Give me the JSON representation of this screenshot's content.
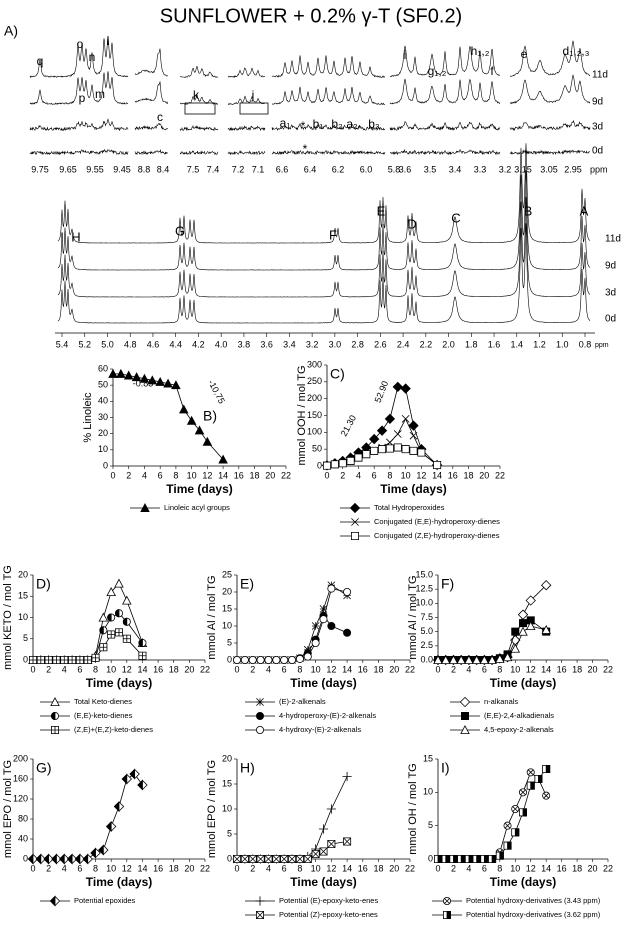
{
  "title": "SUNFLOWER + 0.2% γ-T (SF0.2)",
  "spectra": {
    "panel_label": "A)",
    "top_ticks": [
      "9.75",
      "9.65",
      "9.55",
      "9.45",
      "8.8",
      "8.4",
      "7.5",
      "7.4",
      "7.2",
      "7.1",
      "6.6",
      "6.4",
      "6.2",
      "6.0",
      "5.8",
      "3.6",
      "3.5",
      "3.4",
      "3.3",
      "3.2",
      "3.15",
      "3.05",
      "2.95"
    ],
    "unit": "ppm",
    "peak_labels": [
      "q",
      "o",
      "n",
      "l",
      "m",
      "p",
      "c",
      "k",
      "j",
      "a₁",
      "*",
      "b₁",
      "b₂",
      "a₂",
      "b₃",
      "*",
      "i",
      "g₁,₂",
      "h₁,₂",
      "f",
      "e",
      "d₁,₂,₃"
    ],
    "days": [
      "11d",
      "9d",
      "3d",
      "0d"
    ],
    "bottom_peaks": [
      "I",
      "H",
      "G",
      "F",
      "E",
      "D",
      "C",
      "B",
      "A"
    ],
    "bottom_ticks": [
      "5.4",
      "5.2",
      "5.0",
      "4.8",
      "4.6",
      "4.4",
      "4.2",
      "4.0",
      "3.8",
      "3.6",
      "3.4",
      "3.2",
      "3.0",
      "2.8",
      "2.6",
      "2.4",
      "2.2",
      "2.0",
      "1.8",
      "1.6",
      "1.4",
      "1.2",
      "1.0",
      "0.8"
    ]
  },
  "chart_data": [
    {
      "type": "line",
      "panel_label": "B)",
      "ylabel": "% Linoleic",
      "xlabel": "Time (days)",
      "x": [
        0,
        1,
        2,
        3,
        4,
        5,
        6,
        7,
        8,
        9,
        10,
        11,
        12,
        14
      ],
      "xlim": [
        0,
        22
      ],
      "xticks": [
        0,
        2,
        4,
        6,
        8,
        10,
        12,
        14,
        16,
        18,
        20,
        22
      ],
      "ylim": [
        0,
        60
      ],
      "yticks": [
        0,
        10,
        20,
        30,
        40,
        50,
        60
      ],
      "annotations": [
        "-0.85",
        "-10.75"
      ],
      "series": [
        {
          "name": "Linoleic acyl groups",
          "color": "#000000",
          "marker": "triangle",
          "marker_fill": "#000000",
          "values": [
            57,
            57,
            56,
            55,
            54,
            53,
            52,
            51,
            50,
            35,
            28,
            22,
            15,
            4
          ]
        }
      ]
    },
    {
      "type": "line",
      "panel_label": "C)",
      "ylabel": "mmol OOH / mol TG",
      "xlabel": "Time (days)",
      "x": [
        0,
        1,
        2,
        3,
        4,
        5,
        6,
        7,
        8,
        9,
        10,
        11,
        12,
        14
      ],
      "xlim": [
        0,
        22
      ],
      "xticks": [
        0,
        2,
        4,
        6,
        8,
        10,
        12,
        14,
        16,
        18,
        20,
        22
      ],
      "ylim": [
        0,
        300
      ],
      "yticks": [
        0,
        50,
        100,
        150,
        200,
        250,
        300
      ],
      "annotations": [
        "21.30",
        "52.90"
      ],
      "series": [
        {
          "name": "Total Hydroperoxides",
          "color": "#000000",
          "marker": "diamond",
          "marker_fill": "#000000",
          "values": [
            2,
            8,
            15,
            25,
            40,
            55,
            80,
            105,
            140,
            235,
            230,
            120,
            50,
            3
          ]
        },
        {
          "name": "Conjugated (E,E)-hydroperoxy-dienes",
          "color": "#000000",
          "marker": "x",
          "marker_fill": "#ffffff",
          "values": [
            1,
            5,
            10,
            18,
            28,
            35,
            45,
            55,
            70,
            95,
            140,
            90,
            40,
            3
          ]
        },
        {
          "name": "Conjugated (Z,E)-hydroperoxy-dienes",
          "color": "#000000",
          "marker": "square",
          "marker_fill": "#ffffff",
          "values": [
            1,
            5,
            8,
            15,
            25,
            35,
            45,
            50,
            52,
            55,
            50,
            45,
            40,
            3
          ]
        }
      ]
    },
    {
      "type": "line",
      "panel_label": "D)",
      "ylabel": "mmol KETO / mol TG",
      "xlabel": "Time (days)",
      "x": [
        0,
        1,
        2,
        3,
        4,
        5,
        6,
        7,
        8,
        9,
        10,
        11,
        12,
        14
      ],
      "xlim": [
        0,
        22
      ],
      "xticks": [
        0,
        2,
        4,
        6,
        8,
        10,
        12,
        14,
        16,
        18,
        20,
        22
      ],
      "ylim": [
        0,
        20
      ],
      "yticks": [
        0,
        5,
        10,
        15,
        20
      ],
      "series": [
        {
          "name": "Total Keto-dienes",
          "color": "#000000",
          "marker": "triangle",
          "marker_fill": "#ffffff",
          "values": [
            0,
            0,
            0,
            0,
            0,
            0,
            0,
            0,
            1,
            10,
            16,
            18,
            14,
            4
          ]
        },
        {
          "name": "(E,E)-keto-dienes",
          "color": "#000000",
          "marker": "half-circle",
          "marker_fill": "#000000",
          "values": [
            0,
            0,
            0,
            0,
            0,
            0,
            0,
            0,
            0.5,
            7,
            10,
            11,
            9,
            4
          ]
        },
        {
          "name": "(Z,E)+(E,Z)-keto-dienes",
          "color": "#000000",
          "marker": "square-plus",
          "marker_fill": "#ffffff",
          "values": [
            0,
            0,
            0,
            0,
            0,
            0,
            0,
            0,
            0.5,
            3,
            6,
            6.5,
            5,
            1
          ]
        }
      ]
    },
    {
      "type": "line",
      "panel_label": "E)",
      "ylabel": "mmol Al / mol TG",
      "xlabel": "Time (days)",
      "x": [
        0,
        1,
        2,
        3,
        4,
        5,
        6,
        7,
        8,
        9,
        10,
        11,
        12,
        14
      ],
      "xlim": [
        0,
        22
      ],
      "xticks": [
        0,
        2,
        4,
        6,
        8,
        10,
        12,
        14,
        16,
        18,
        20,
        22
      ],
      "ylim": [
        0,
        25
      ],
      "yticks": [
        0,
        5,
        10,
        15,
        20,
        25
      ],
      "series": [
        {
          "name": "(E)-2-alkenals",
          "color": "#000000",
          "marker": "asterisk",
          "marker_fill": "#ffffff",
          "values": [
            0,
            0,
            0,
            0,
            0,
            0,
            0,
            0,
            0.5,
            3,
            10,
            15,
            22,
            19
          ]
        },
        {
          "name": "4-hydroperoxy-(E)-2-alkenals",
          "color": "#000000",
          "marker": "circle",
          "marker_fill": "#000000",
          "values": [
            0,
            0,
            0,
            0,
            0,
            0,
            0,
            0,
            0.5,
            2,
            6,
            13,
            10,
            8
          ]
        },
        {
          "name": "4-hydroxy-(E)-2-alkenals",
          "color": "#000000",
          "marker": "circle",
          "marker_fill": "#ffffff",
          "values": [
            0,
            0,
            0,
            0,
            0,
            0,
            0,
            0,
            0.3,
            1,
            5,
            12,
            21,
            20
          ]
        }
      ]
    },
    {
      "type": "line",
      "panel_label": "F)",
      "ylabel": "mmol Al / mol TG",
      "xlabel": "Time (days)",
      "x": [
        0,
        1,
        2,
        3,
        4,
        5,
        6,
        7,
        8,
        9,
        10,
        11,
        12,
        14
      ],
      "xlim": [
        0,
        22
      ],
      "xticks": [
        0,
        2,
        4,
        6,
        8,
        10,
        12,
        14,
        16,
        18,
        20,
        22
      ],
      "ylim": [
        0,
        15
      ],
      "yticks": [
        {
          "value": 0,
          "label": "0.0"
        },
        2.5,
        {
          "value": 5,
          "label": "5.0"
        },
        7.5,
        {
          "value": 10,
          "label": "10.0"
        },
        12.5,
        {
          "value": 15,
          "label": "15.0"
        }
      ],
      "series": [
        {
          "name": "n-alkanals",
          "color": "#000000",
          "marker": "diamond",
          "marker_fill": "#ffffff",
          "values": [
            0,
            0,
            0,
            0,
            0,
            0,
            0,
            0,
            0.3,
            0.5,
            3.5,
            8,
            10.5,
            13.2
          ]
        },
        {
          "name": "(E,E)-2,4-alkadienals",
          "color": "#000000",
          "marker": "square",
          "marker_fill": "#000000",
          "values": [
            0,
            0,
            0,
            0,
            0,
            0,
            0,
            0,
            0.3,
            1,
            5,
            6.5,
            7,
            5
          ]
        },
        {
          "name": "4,5-epoxy-2-alkenals",
          "color": "#000000",
          "marker": "triangle",
          "marker_fill": "#ffffff",
          "values": [
            0,
            0,
            0,
            0,
            0,
            0,
            0,
            0,
            0.2,
            0.5,
            2,
            5,
            6,
            5.3
          ]
        }
      ]
    },
    {
      "type": "line",
      "panel_label": "G)",
      "ylabel": "mmol EPO / mol TG",
      "xlabel": "Time (days)",
      "x": [
        0,
        1,
        2,
        3,
        4,
        5,
        6,
        7,
        8,
        9,
        10,
        11,
        12,
        13,
        14
      ],
      "xlim": [
        0,
        22
      ],
      "xticks": [
        0,
        2,
        4,
        6,
        8,
        10,
        12,
        14,
        16,
        18,
        20,
        22
      ],
      "ylim": [
        0,
        200
      ],
      "yticks": [
        0,
        40,
        80,
        120,
        160,
        200
      ],
      "series": [
        {
          "name": "Potential epoxides",
          "color": "#000000",
          "marker": "half-diamond",
          "marker_fill": "#000000",
          "values": [
            0,
            0,
            0,
            0,
            0,
            0,
            0,
            0,
            12,
            18,
            65,
            105,
            160,
            170,
            148
          ]
        }
      ]
    },
    {
      "type": "line",
      "panel_label": "H)",
      "ylabel": "mmol EPO / mol TG",
      "xlabel": "Time (days)",
      "x": [
        0,
        1,
        2,
        3,
        4,
        5,
        6,
        7,
        8,
        9,
        10,
        11,
        12,
        14
      ],
      "xlim": [
        0,
        22
      ],
      "xticks": [
        0,
        2,
        4,
        6,
        8,
        10,
        12,
        14,
        16,
        18,
        20,
        22
      ],
      "ylim": [
        0,
        20
      ],
      "yticks": [
        0,
        5,
        10,
        15,
        20
      ],
      "series": [
        {
          "name": "Potential (E)-epoxy-keto-enes",
          "color": "#000000",
          "marker": "plus",
          "marker_fill": "#ffffff",
          "values": [
            0,
            0,
            0,
            0,
            0,
            0,
            0,
            0,
            0,
            0.5,
            2,
            6,
            10,
            16.5
          ]
        },
        {
          "name": "Potential (Z)-epoxy-keto-enes",
          "color": "#000000",
          "marker": "square-x",
          "marker_fill": "#ffffff",
          "values": [
            0,
            0,
            0,
            0,
            0,
            0,
            0,
            0,
            0,
            0,
            1,
            1.5,
            3,
            3.5
          ]
        }
      ]
    },
    {
      "type": "line",
      "panel_label": "I)",
      "ylabel": "mmol OH / mol TG",
      "xlabel": "Time (days)",
      "x": [
        0,
        1,
        2,
        3,
        4,
        5,
        6,
        7,
        8,
        9,
        10,
        11,
        12,
        13,
        14
      ],
      "xlim": [
        0,
        22
      ],
      "xticks": [
        0,
        2,
        4,
        6,
        8,
        10,
        12,
        14,
        16,
        18,
        20,
        22
      ],
      "ylim": [
        0,
        15
      ],
      "yticks": [
        0,
        5,
        10,
        15
      ],
      "series": [
        {
          "name": "Potential hydroxy-derivatives (3.43 ppm)",
          "color": "#000000",
          "marker": "circle-x",
          "marker_fill": "#ffffff",
          "values": [
            0,
            0,
            0,
            0,
            0,
            0,
            0,
            0,
            1,
            5,
            7.5,
            10,
            13,
            12,
            9.5
          ]
        },
        {
          "name": "Potential hydroxy-derivatives (3.62 ppm)",
          "color": "#000000",
          "marker": "half-square",
          "marker_fill": "#000000",
          "values": [
            0,
            0,
            0,
            0,
            0,
            0,
            0,
            0,
            0.5,
            2,
            4,
            7,
            11,
            12,
            13.5
          ]
        }
      ]
    }
  ]
}
